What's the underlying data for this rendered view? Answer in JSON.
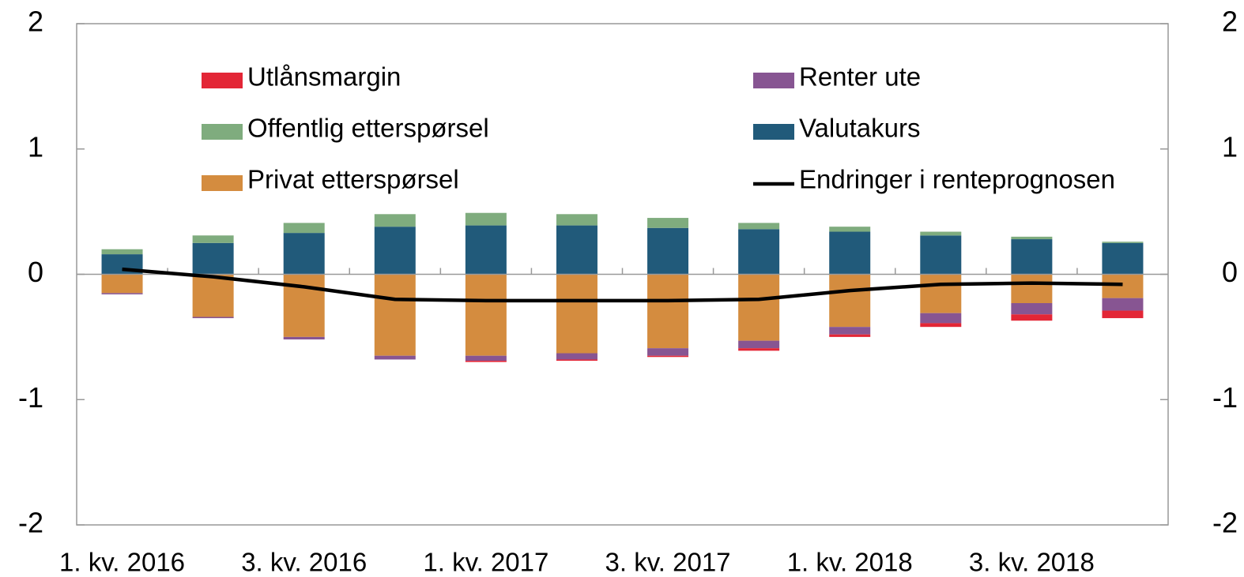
{
  "chart_data": {
    "type": "bar",
    "stacked": true,
    "categories": [
      "1. kv. 2016",
      null,
      "3. kv. 2016",
      null,
      "1. kv. 2017",
      null,
      "3. kv. 2017",
      null,
      "1. kv. 2018",
      null,
      "3. kv. 2018",
      null
    ],
    "series": [
      {
        "name": "Utlånsmargin",
        "color": "#e32636",
        "values": [
          0,
          0,
          0,
          0,
          -0.01,
          -0.01,
          -0.01,
          -0.02,
          -0.02,
          -0.03,
          -0.05,
          -0.06
        ]
      },
      {
        "name": "Renter ute",
        "color": "#875592",
        "values": [
          -0.01,
          -0.01,
          -0.02,
          -0.03,
          -0.04,
          -0.05,
          -0.06,
          -0.06,
          -0.06,
          -0.08,
          -0.09,
          -0.1
        ]
      },
      {
        "name": "Offentlig etterspørsel",
        "color": "#7fac7e",
        "values": [
          0.04,
          0.06,
          0.08,
          0.1,
          0.1,
          0.09,
          0.08,
          0.05,
          0.04,
          0.03,
          0.02,
          0.01
        ]
      },
      {
        "name": "Valutakurs",
        "color": "#215a7a",
        "values": [
          0.16,
          0.25,
          0.33,
          0.38,
          0.39,
          0.39,
          0.37,
          0.36,
          0.34,
          0.31,
          0.28,
          0.25
        ]
      },
      {
        "name": "Privat etterspørsel",
        "color": "#d48c3f",
        "values": [
          -0.15,
          -0.34,
          -0.5,
          -0.65,
          -0.65,
          -0.63,
          -0.59,
          -0.53,
          -0.42,
          -0.31,
          -0.23,
          -0.19
        ]
      },
      {
        "name": "Endringer i renteprognosen",
        "color": "#000000",
        "type": "line",
        "values": [
          0.04,
          -0.02,
          -0.1,
          -0.2,
          -0.21,
          -0.21,
          -0.21,
          -0.2,
          -0.13,
          -0.08,
          -0.07,
          -0.08
        ]
      }
    ],
    "ylim": [
      -2,
      2
    ],
    "yticks": [
      -2,
      -1,
      0,
      1,
      2
    ],
    "y2lim": [
      -2,
      2
    ],
    "y2ticks": [
      -2,
      -1,
      0,
      1,
      2
    ],
    "grid": false
  }
}
